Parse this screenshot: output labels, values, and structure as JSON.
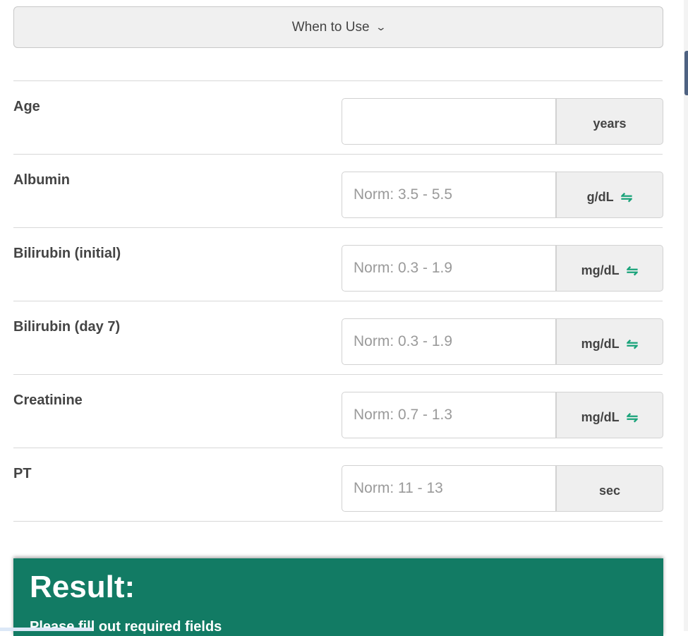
{
  "when_to_use": {
    "label": "When to Use",
    "icon": "chevron-down-icon"
  },
  "fields": [
    {
      "label": "Age",
      "placeholder": "",
      "unit": "years",
      "convertible": false
    },
    {
      "label": "Albumin",
      "placeholder": "Norm: 3.5 - 5.5",
      "unit": "g/dL",
      "convertible": true
    },
    {
      "label": "Bilirubin (initial)",
      "placeholder": "Norm: 0.3 - 1.9",
      "unit": "mg/dL",
      "convertible": true
    },
    {
      "label": "Bilirubin (day 7)",
      "placeholder": "Norm: 0.3 - 1.9",
      "unit": "mg/dL",
      "convertible": true
    },
    {
      "label": "Creatinine",
      "placeholder": "Norm: 0.7 - 1.3",
      "unit": "mg/dL",
      "convertible": true
    },
    {
      "label": "PT",
      "placeholder": "Norm: 11 - 13",
      "unit": "sec",
      "convertible": false
    }
  ],
  "swap_glyph": "⇋",
  "result": {
    "title": "Result:",
    "message": "Please fill out required fields"
  },
  "colors": {
    "result_bg": "#127b64",
    "swap_icon": "#1aa37a",
    "scroll_thumb": "#4e6282"
  }
}
